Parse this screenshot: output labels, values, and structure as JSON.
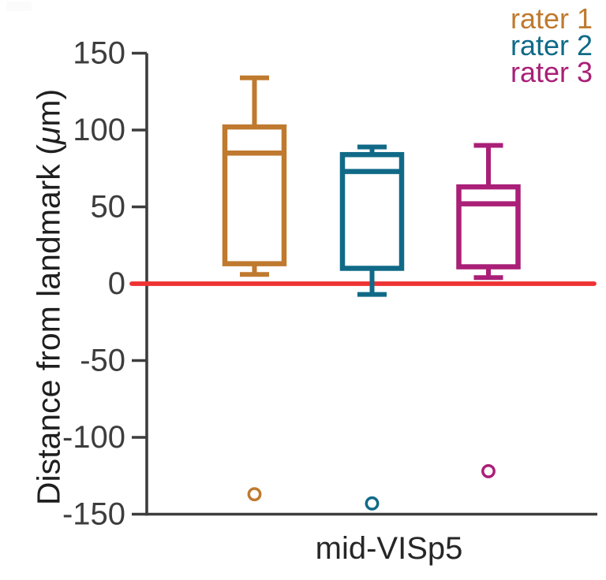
{
  "chart_data": {
    "type": "box",
    "title": "",
    "xlabel": "mid-VISp5",
    "ylabel": "Distance from landmark (μm)",
    "ylabel_parts": {
      "pre": "Distance from landmark (",
      "mu": "μ",
      "post": "m)"
    },
    "ylim": [
      -150,
      150
    ],
    "yticks": [
      150,
      100,
      50,
      0,
      -50,
      -100,
      -150
    ],
    "categories": [
      "mid-VISp5"
    ],
    "grid": false,
    "legend_position": "top-right",
    "axis_color": "#3d3d3d",
    "zero_line": {
      "y": 0,
      "color": "#ee3233"
    },
    "series": [
      {
        "name": "rater 1",
        "color": "#bf7a2f",
        "box": {
          "whisker_low": 6,
          "q1": 13,
          "median": 85,
          "q3": 102,
          "whisker_high": 134,
          "outliers": [
            -137
          ]
        }
      },
      {
        "name": "rater 2",
        "color": "#106a87",
        "box": {
          "whisker_low": -7,
          "q1": 10,
          "median": 73,
          "q3": 84,
          "whisker_high": 89,
          "outliers": [
            -143
          ]
        }
      },
      {
        "name": "rater 3",
        "color": "#aa1f77",
        "box": {
          "whisker_low": 4,
          "q1": 11,
          "median": 52,
          "q3": 63,
          "whisker_high": 90,
          "outliers": [
            -122
          ]
        }
      }
    ]
  }
}
